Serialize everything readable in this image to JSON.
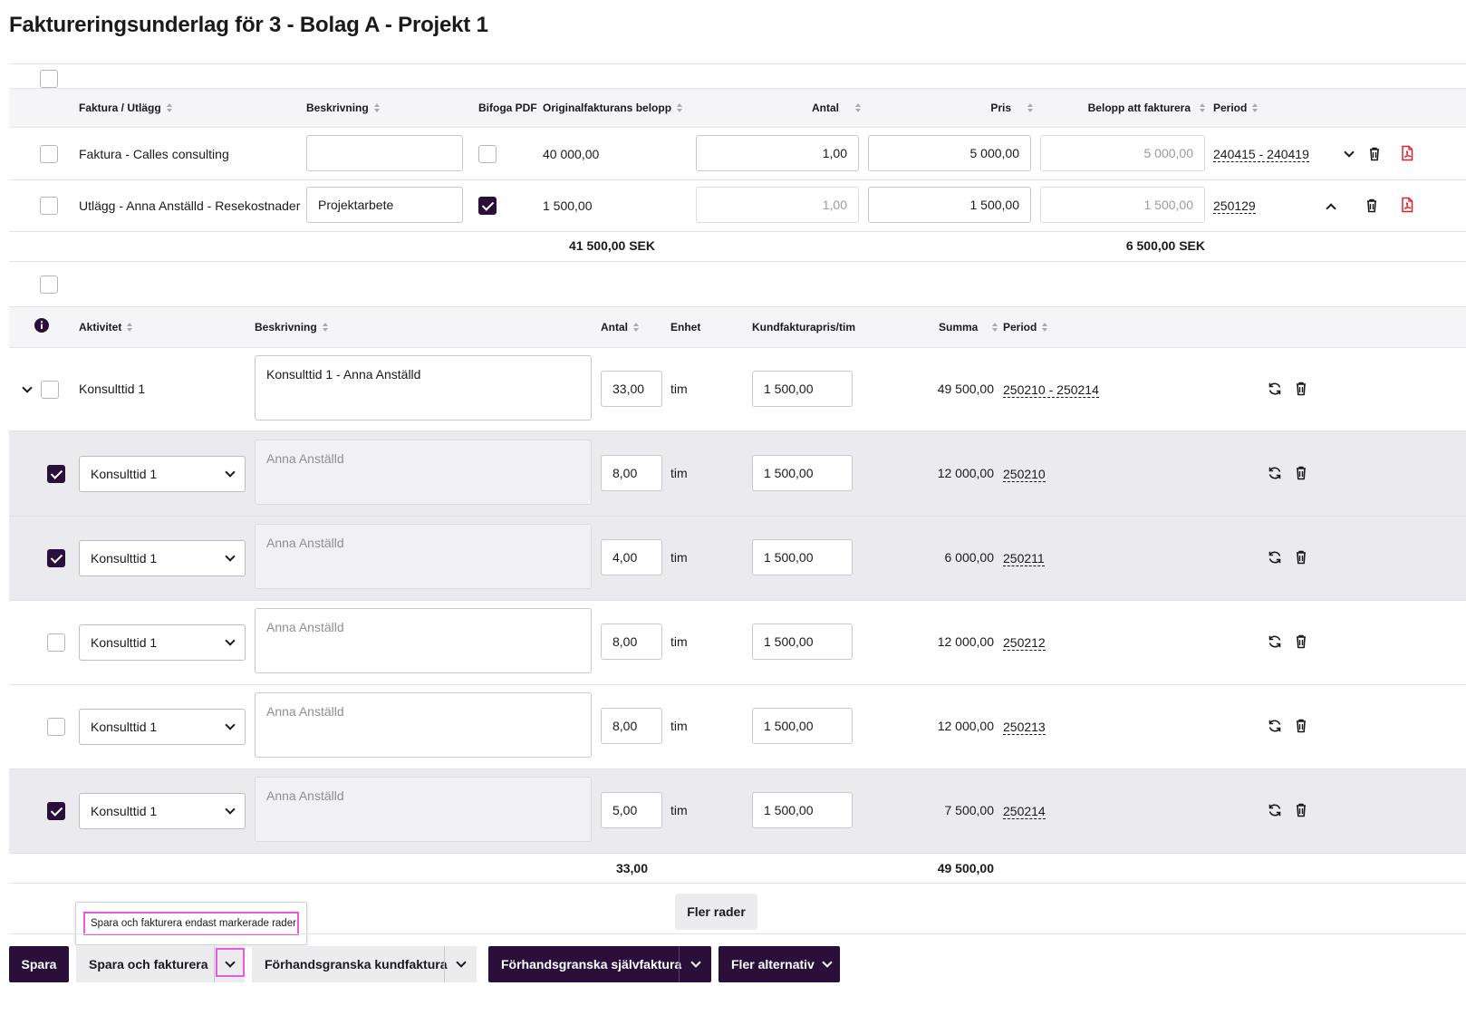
{
  "page": {
    "title": "Faktureringsunderlag för 3 - Bolag A - Projekt 1"
  },
  "invoices": {
    "headers": {
      "faktura": "Faktura / Utlägg",
      "beskrivning": "Beskrivning",
      "bifoga": "Bifoga PDF",
      "original": "Originalfakturans belopp",
      "antal": "Antal",
      "pris": "Pris",
      "belopp": "Belopp att fakturera",
      "period": "Period"
    },
    "rows": [
      {
        "name": "Faktura - Calles consulting",
        "description": "",
        "attach": false,
        "original": "40 000,00",
        "qty": "1,00",
        "price": "5 000,00",
        "amount": "5 000,00",
        "period": "240415 - 240419",
        "expanded": false
      },
      {
        "name": "Utlägg - Anna Anställd - Resekostnader",
        "description": "Projektarbete",
        "attach": true,
        "original": "1 500,00",
        "qty": "1,00",
        "price": "1 500,00",
        "amount": "1 500,00",
        "period": "250129",
        "expanded": true
      }
    ],
    "totals": {
      "original": "41 500,00 SEK",
      "amount": "6 500,00 SEK"
    }
  },
  "activities": {
    "headers": {
      "aktivitet": "Aktivitet",
      "beskrivning": "Beskrivning",
      "antal": "Antal",
      "enhet": "Enhet",
      "pris": "Kundfakturapris/tim",
      "summa": "Summa",
      "period": "Period"
    },
    "parent": {
      "activity": "Konsulttid 1",
      "description": "Konsulttid 1 - Anna Anställd",
      "qty": "33,00",
      "unit": "tim",
      "price": "1 500,00",
      "sum": "49 500,00",
      "period": "250210 - 250214"
    },
    "rows": [
      {
        "checked": true,
        "activity": "Konsulttid 1",
        "description": "Anna Anställd",
        "qty": "8,00",
        "unit": "tim",
        "price": "1 500,00",
        "sum": "12 000,00",
        "period": "250210"
      },
      {
        "checked": true,
        "activity": "Konsulttid 1",
        "description": "Anna Anställd",
        "qty": "4,00",
        "unit": "tim",
        "price": "1 500,00",
        "sum": "6 000,00",
        "period": "250211"
      },
      {
        "checked": false,
        "activity": "Konsulttid 1",
        "description": "Anna Anställd",
        "qty": "8,00",
        "unit": "tim",
        "price": "1 500,00",
        "sum": "12 000,00",
        "period": "250212"
      },
      {
        "checked": false,
        "activity": "Konsulttid 1",
        "description": "Anna Anställd",
        "qty": "8,00",
        "unit": "tim",
        "price": "1 500,00",
        "sum": "12 000,00",
        "period": "250213"
      },
      {
        "checked": true,
        "activity": "Konsulttid 1",
        "description": "Anna Anställd",
        "qty": "5,00",
        "unit": "tim",
        "price": "1 500,00",
        "sum": "7 500,00",
        "period": "250214"
      }
    ],
    "totals": {
      "qty": "33,00",
      "sum": "49 500,00"
    }
  },
  "more_rows_label": "Fler rader",
  "tooltip": "Spara och fakturera endast markerade rader",
  "footer": {
    "spara": "Spara",
    "spara_fakturera": "Spara och fakturera",
    "forhandsgranska_kund": "Förhandsgranska kundfaktura",
    "forhandsgranska_sjalv": "Förhandsgranska självfaktura",
    "fler": "Fler alternativ"
  },
  "colors": {
    "accent": "#2a0f3b",
    "highlight": "#e75be0",
    "selected_row": "#ebeaef",
    "pdf_icon": "#e0202a"
  },
  "icons": [
    "info-icon",
    "sort-icon",
    "chevron-down-icon",
    "chevron-up-icon",
    "trash-icon",
    "pdf-icon",
    "refresh-icon"
  ]
}
